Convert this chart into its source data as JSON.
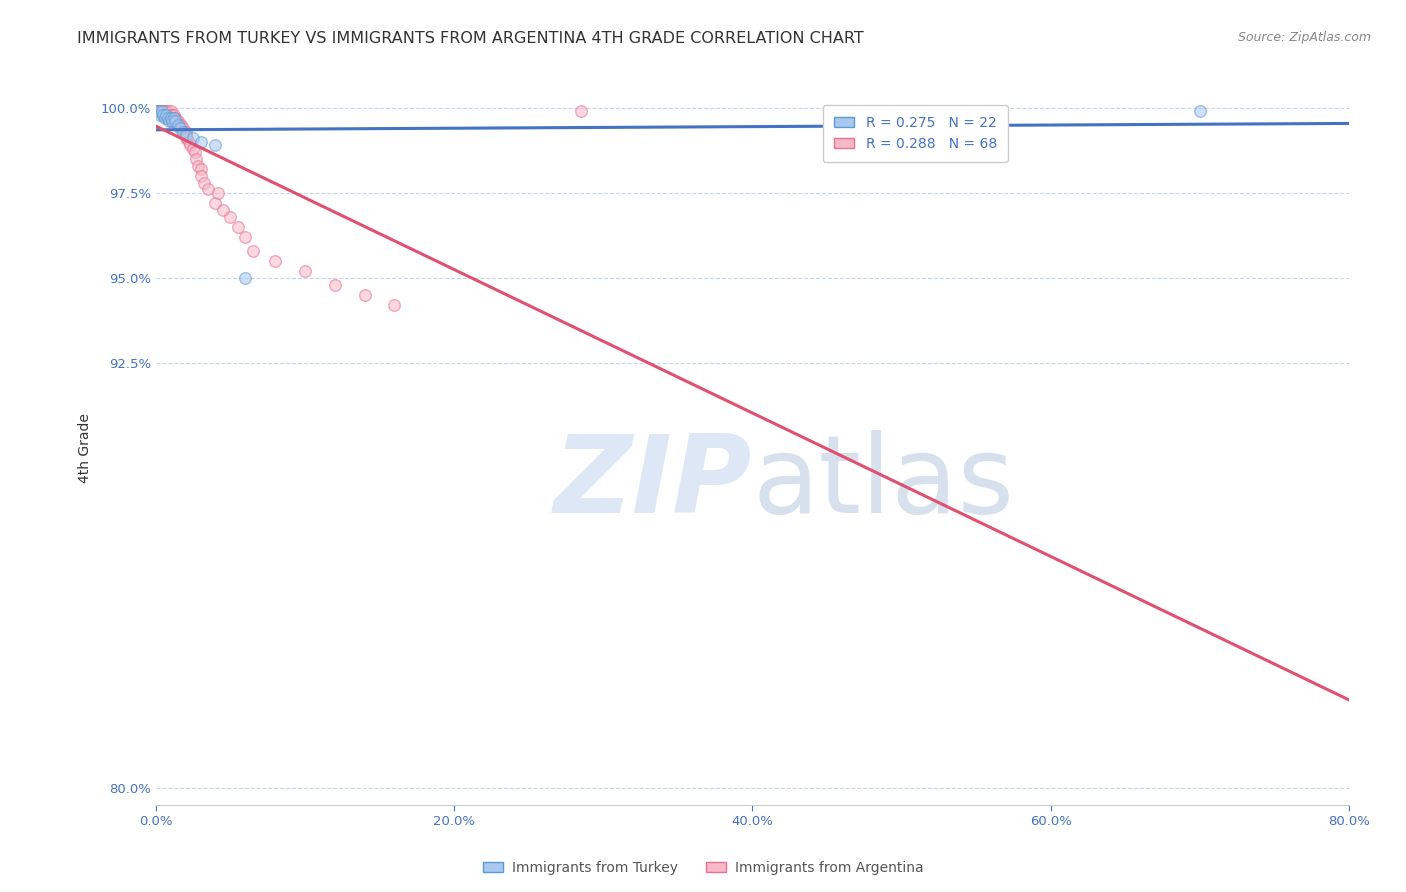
{
  "title": "IMMIGRANTS FROM TURKEY VS IMMIGRANTS FROM ARGENTINA 4TH GRADE CORRELATION CHART",
  "source": "Source: ZipAtlas.com",
  "ylabel": "4th Grade",
  "xlim": [
    0.0,
    0.8
  ],
  "ylim": [
    0.795,
    1.005
  ],
  "xticks": [
    0.0,
    0.2,
    0.4,
    0.6,
    0.8
  ],
  "xtick_labels": [
    "0.0%",
    "20.0%",
    "40.0%",
    "60.0%",
    "80.0%"
  ],
  "yticks": [
    0.8,
    0.925,
    0.95,
    0.975,
    1.0
  ],
  "ytick_labels": [
    "80.0%",
    "92.5%",
    "95.0%",
    "97.5%",
    "100.0%"
  ],
  "turkey_color": "#a8c8f0",
  "argentina_color": "#f8b8c8",
  "turkey_edge": "#5b9bd5",
  "argentina_edge": "#e87090",
  "trendline_turkey_color": "#4472c4",
  "trendline_argentina_color": "#e05070",
  "legend_turkey_label": "R = 0.275   N = 22",
  "legend_argentina_label": "R = 0.288   N = 68",
  "turkey_x": [
    0.001,
    0.002,
    0.003,
    0.004,
    0.005,
    0.006,
    0.007,
    0.008,
    0.009,
    0.01,
    0.011,
    0.012,
    0.013,
    0.015,
    0.016,
    0.018,
    0.02,
    0.025,
    0.03,
    0.04,
    0.06,
    0.7
  ],
  "turkey_y": [
    0.999,
    0.999,
    0.998,
    0.999,
    0.998,
    0.997,
    0.998,
    0.997,
    0.996,
    0.997,
    0.996,
    0.997,
    0.996,
    0.995,
    0.994,
    0.993,
    0.992,
    0.991,
    0.99,
    0.989,
    0.95,
    0.999
  ],
  "argentina_x": [
    0.001,
    0.001,
    0.002,
    0.002,
    0.002,
    0.003,
    0.003,
    0.003,
    0.004,
    0.004,
    0.004,
    0.005,
    0.005,
    0.005,
    0.005,
    0.006,
    0.006,
    0.006,
    0.007,
    0.007,
    0.007,
    0.008,
    0.008,
    0.008,
    0.009,
    0.009,
    0.01,
    0.01,
    0.01,
    0.011,
    0.011,
    0.012,
    0.012,
    0.013,
    0.013,
    0.014,
    0.015,
    0.015,
    0.016,
    0.017,
    0.018,
    0.019,
    0.02,
    0.02,
    0.021,
    0.022,
    0.023,
    0.025,
    0.026,
    0.027,
    0.028,
    0.03,
    0.03,
    0.032,
    0.035,
    0.04,
    0.042,
    0.045,
    0.05,
    0.055,
    0.06,
    0.065,
    0.08,
    0.1,
    0.12,
    0.14,
    0.16,
    0.285
  ],
  "argentina_y": [
    0.999,
    0.999,
    0.999,
    0.999,
    0.999,
    0.999,
    0.999,
    0.999,
    0.999,
    0.999,
    0.999,
    0.999,
    0.999,
    0.999,
    0.998,
    0.999,
    0.999,
    0.999,
    0.999,
    0.998,
    0.997,
    0.999,
    0.998,
    0.997,
    0.998,
    0.997,
    0.999,
    0.998,
    0.996,
    0.998,
    0.997,
    0.998,
    0.997,
    0.997,
    0.996,
    0.996,
    0.996,
    0.995,
    0.995,
    0.995,
    0.994,
    0.993,
    0.993,
    0.991,
    0.991,
    0.99,
    0.989,
    0.988,
    0.987,
    0.985,
    0.983,
    0.982,
    0.98,
    0.978,
    0.976,
    0.972,
    0.975,
    0.97,
    0.968,
    0.965,
    0.962,
    0.958,
    0.955,
    0.952,
    0.948,
    0.945,
    0.942,
    0.999
  ],
  "watermark_zip": "ZIP",
  "watermark_atlas": "atlas",
  "background_color": "#ffffff",
  "grid_color": "#c8d4e8",
  "title_fontsize": 11.5,
  "axis_label_fontsize": 10,
  "tick_fontsize": 9.5,
  "legend_fontsize": 10,
  "source_fontsize": 9,
  "marker_size": 70,
  "marker_alpha": 0.55,
  "trendline_x_start": 0.0,
  "trendline_x_end": 0.8
}
